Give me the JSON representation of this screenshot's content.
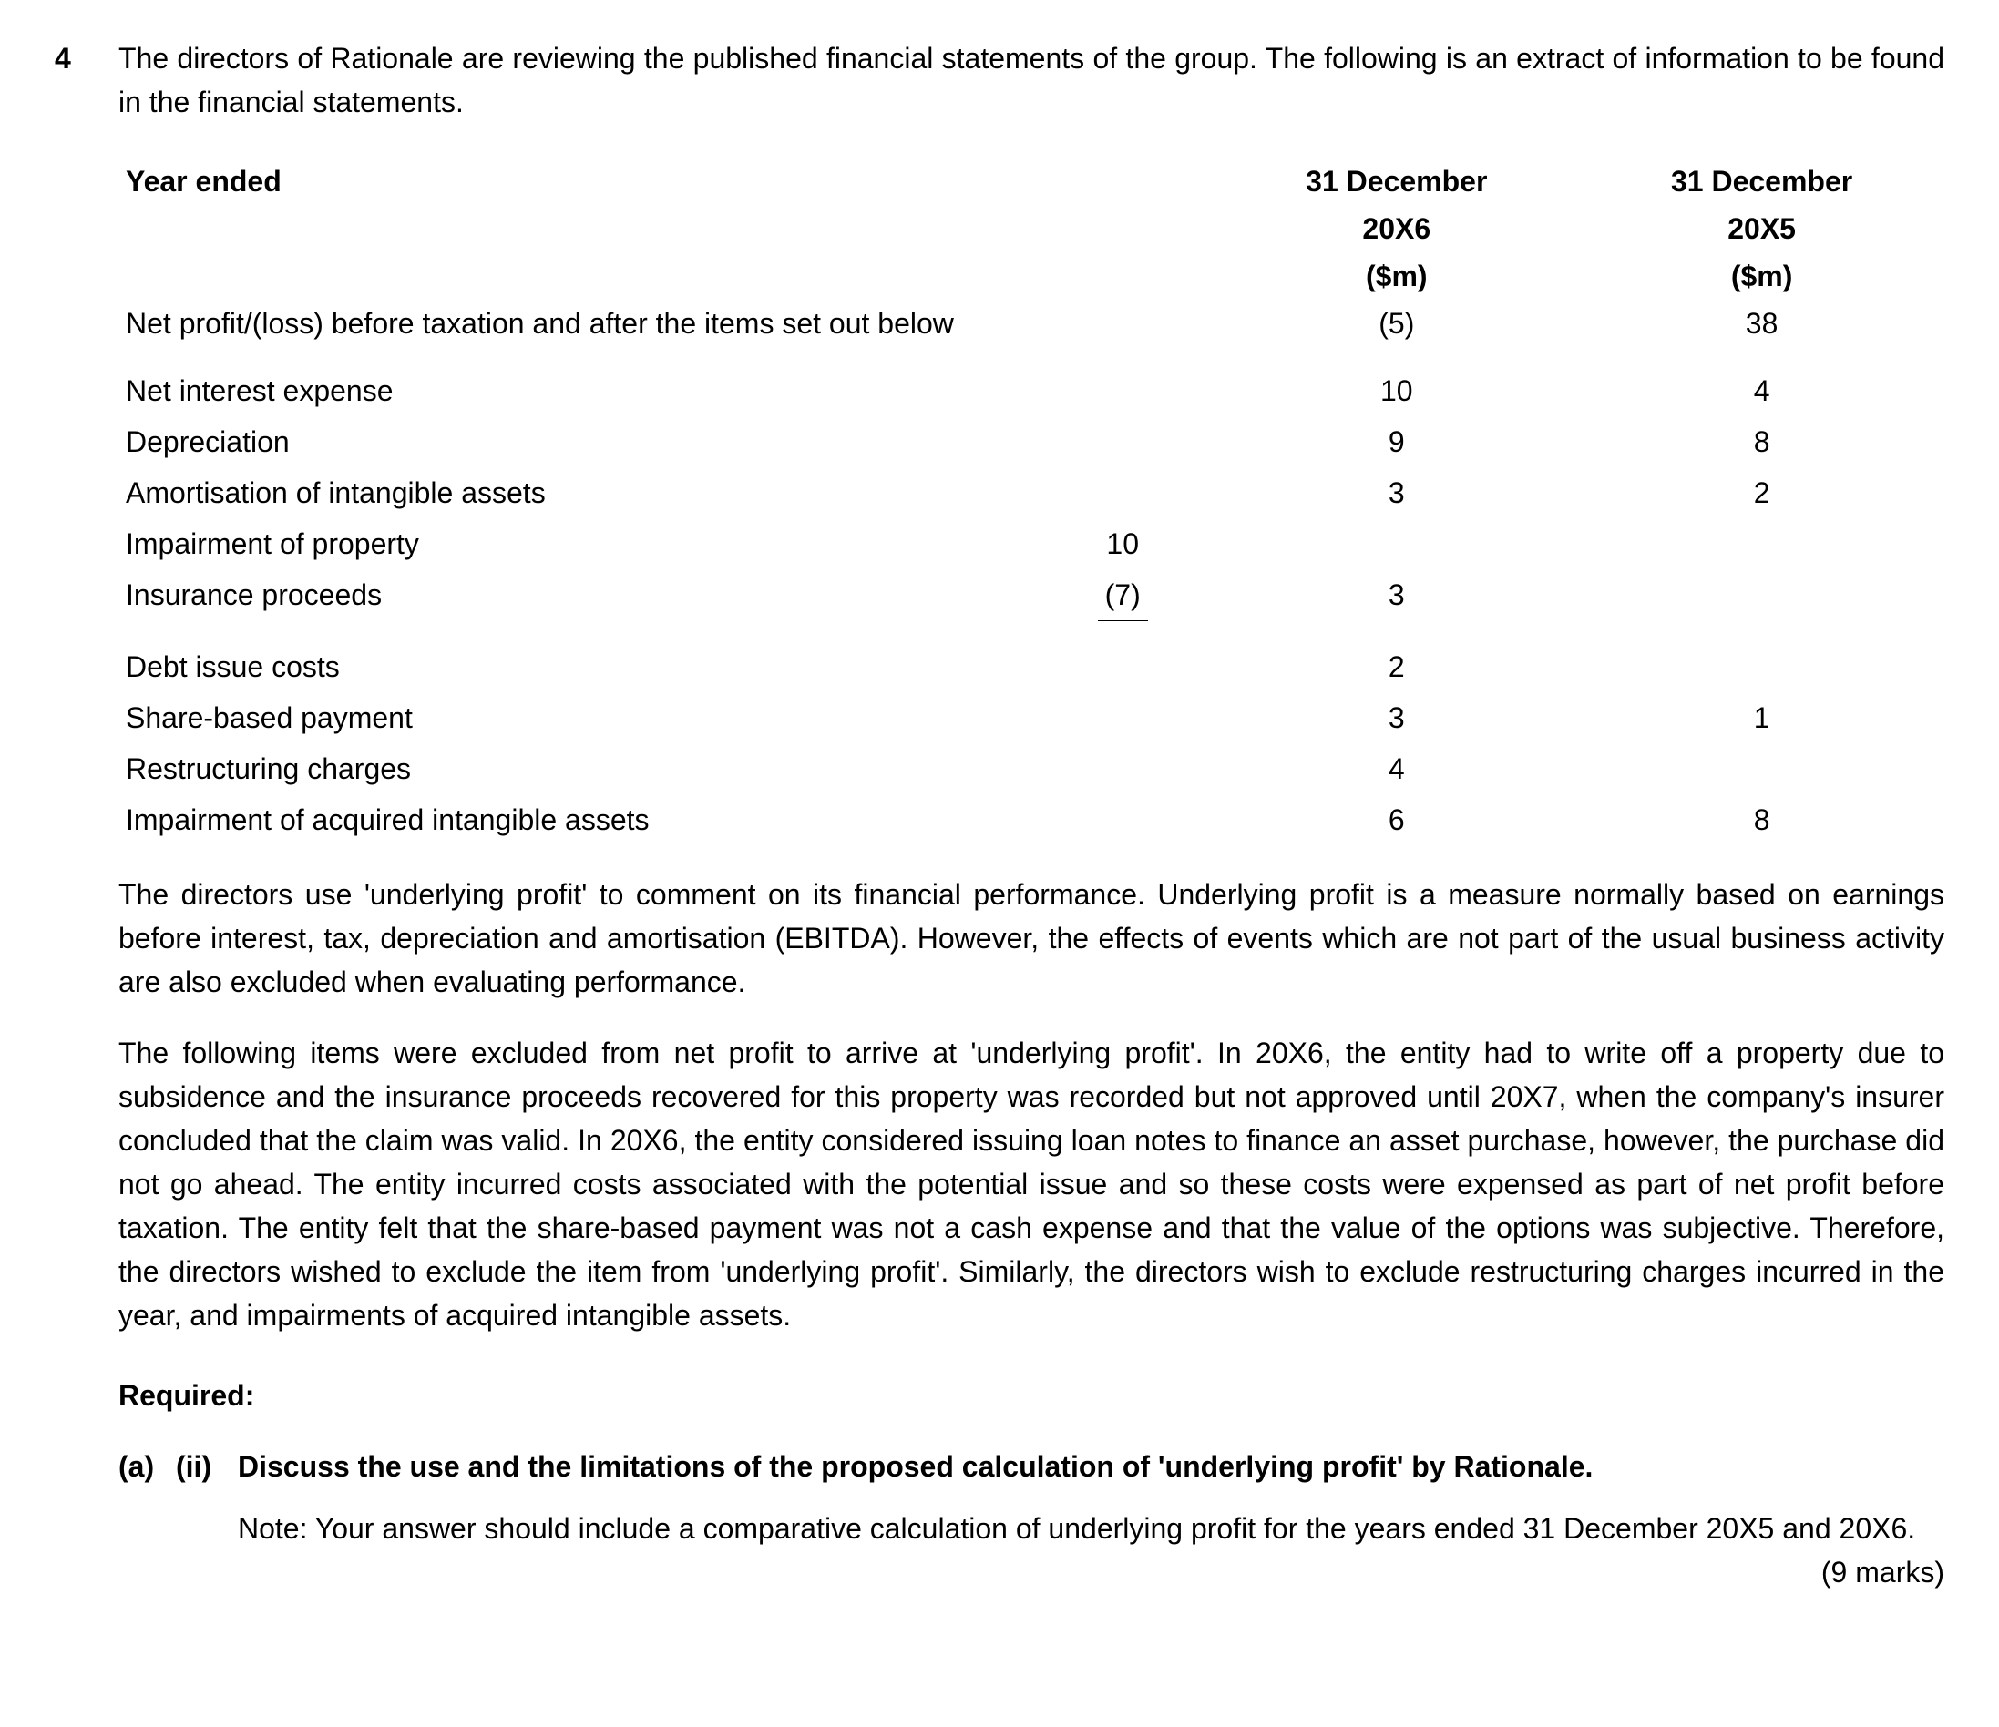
{
  "question_number": "4",
  "intro": "The directors of Rationale are reviewing the published financial statements of the group. The following is an extract of information to be found in the financial statements.",
  "table": {
    "year_ended_label": "Year ended",
    "header_20x6_line1": "31 December",
    "header_20x6_line2": "20X6",
    "header_20x6_line3": "($m)",
    "header_20x5_line1": "31 December",
    "header_20x5_line2": "20X5",
    "header_20x5_line3": "($m)",
    "rows": {
      "net_profit_label": "Net profit/(loss) before taxation and after the items set out below",
      "net_profit_20x6": "(5)",
      "net_profit_20x5": "38",
      "net_interest_label": "Net interest expense",
      "net_interest_20x6": "10",
      "net_interest_20x5": "4",
      "depreciation_label": "Depreciation",
      "depreciation_20x6": "9",
      "depreciation_20x5": "8",
      "amortisation_label": "Amortisation of intangible assets",
      "amortisation_20x6": "3",
      "amortisation_20x5": "2",
      "impairment_property_label": "Impairment of property",
      "impairment_property_sub": "10",
      "insurance_label": "Insurance proceeds",
      "insurance_sub": "(7)",
      "insurance_20x6": "3",
      "debt_issue_label": "Debt issue costs",
      "debt_issue_20x6": "2",
      "share_based_label": "Share-based payment",
      "share_based_20x6": "3",
      "share_based_20x5": "1",
      "restructuring_label": "Restructuring charges",
      "restructuring_20x6": "4",
      "impairment_intangible_label": "Impairment of acquired intangible assets",
      "impairment_intangible_20x6": "6",
      "impairment_intangible_20x5": "8"
    }
  },
  "para1": "The directors use 'underlying profit' to comment on its financial performance. Underlying profit is a measure normally based on earnings before interest, tax, depreciation and amortisation (EBITDA). However, the effects of events which are not part of the usual business activity are also excluded when evaluating performance.",
  "para2": "The following items were excluded from net profit to arrive at 'underlying profit'. In 20X6, the entity had to write off a property due to subsidence and the insurance proceeds recovered for this property was recorded but not approved until 20X7, when the company's insurer concluded that the claim was valid. In 20X6, the entity considered issuing loan notes to finance an asset purchase, however, the purchase did not go ahead. The entity incurred costs associated with the potential issue and so these costs were expensed as part of net profit before taxation. The entity felt that the share-based payment was not a cash expense and that the value of the options was subjective. Therefore, the directors wished to exclude the item from 'underlying profit'. Similarly, the directors wish to exclude restructuring charges incurred in the year, and impairments of acquired intangible assets.",
  "required_label": "Required:",
  "subpart": {
    "a": "(a)",
    "ii": "(ii)",
    "heading": "Discuss the use and the limitations of the proposed calculation of 'underlying profit' by Rationale.",
    "note_prefix": "Note: Your answer should include a comparative calculation of underlying profit for the years ended 31 December 20X5 and 20X6.",
    "marks": "(9 marks)"
  }
}
